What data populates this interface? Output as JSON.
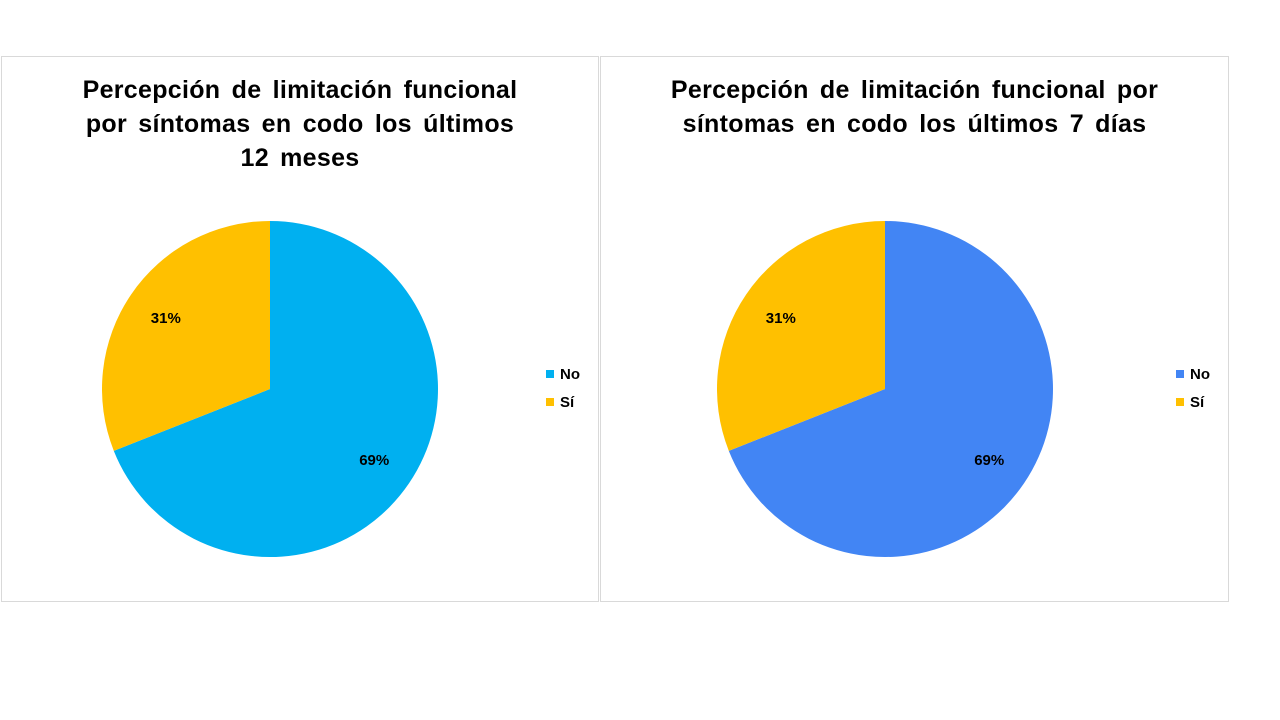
{
  "chart_data": [
    {
      "type": "pie",
      "title": "Percepción de limitación funcional por síntomas en codo los últimos 12 meses",
      "categories": [
        "No",
        "Sí"
      ],
      "values": [
        69,
        31
      ],
      "labels": [
        "69%",
        "31%"
      ],
      "colors": [
        "#00B0F0",
        "#FFC000"
      ],
      "legend_position": "right"
    },
    {
      "type": "pie",
      "title": "Percepción de limitación funcional por síntomas en codo los últimos 7 días",
      "categories": [
        "No",
        "Sí"
      ],
      "values": [
        69,
        31
      ],
      "labels": [
        "69%",
        "31%"
      ],
      "colors": [
        "#4285F4",
        "#FFC000"
      ],
      "legend_position": "right"
    }
  ]
}
